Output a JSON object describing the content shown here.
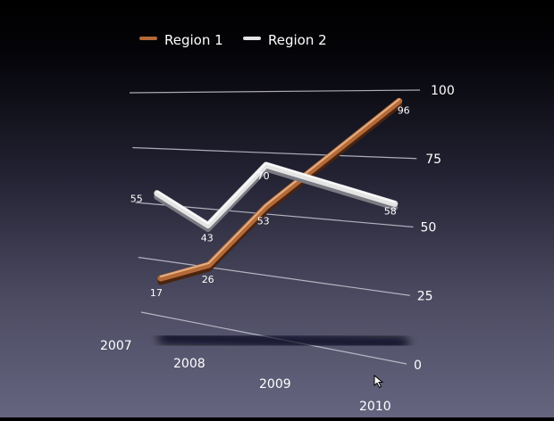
{
  "chart_data": {
    "type": "line",
    "style": "3d-perspective",
    "categories": [
      "2007",
      "2008",
      "2009",
      "2010"
    ],
    "series": [
      {
        "name": "Region 1",
        "values": [
          17,
          26,
          53,
          96
        ],
        "color": "#b46a38"
      },
      {
        "name": "Region 2",
        "values": [
          55,
          43,
          70,
          58
        ],
        "color": "#e4e4e4"
      }
    ],
    "y_ticks": [
      "0",
      "25",
      "50",
      "75",
      "100"
    ],
    "ylim": [
      0,
      100
    ],
    "grid": true,
    "legend_position": "top",
    "data_labels": true
  },
  "colors": {
    "background_top": "#000000",
    "background_bottom": "#666580",
    "gridline": "#c8c8d2",
    "text": "#ffffff"
  }
}
